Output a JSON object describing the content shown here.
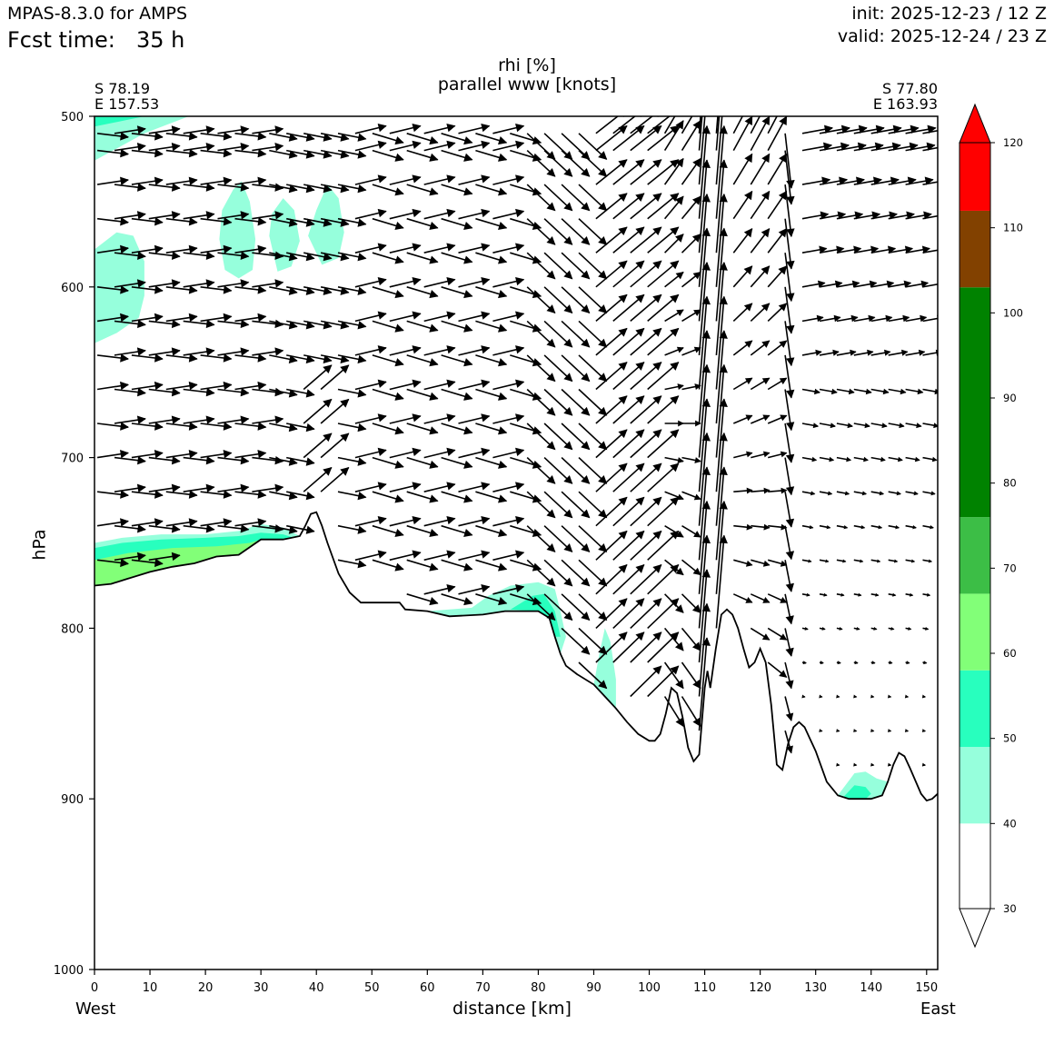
{
  "header": {
    "model": "MPAS-8.3.0 for AMPS",
    "fcst_label": "Fcst time:",
    "fcst_value": "35 h",
    "init": "init: 2025-12-23 / 12 Z",
    "valid": "valid: 2025-12-24 / 23 Z"
  },
  "plot": {
    "title_line1": "rhi [%]",
    "title_line2": "parallel www [knots]",
    "left_lat": "S 78.19",
    "left_lon": "E 157.53",
    "right_lat": "S 77.80",
    "right_lon": "E 163.93",
    "ylabel": "hPa",
    "xlabel": "distance [km]",
    "west": "West",
    "east": "East"
  },
  "chart_data": {
    "type": "heatmap",
    "title": "rhi [%]",
    "subtitle": "parallel www [knots]",
    "xlabel": "distance [km]",
    "ylabel": "hPa",
    "xlim": [
      0,
      152
    ],
    "ylim": [
      1000,
      500
    ],
    "y_inverted": true,
    "x_ticks": [
      0,
      10,
      20,
      30,
      40,
      50,
      60,
      70,
      80,
      90,
      100,
      110,
      120,
      130,
      140,
      150
    ],
    "y_ticks": [
      500,
      600,
      700,
      800,
      900,
      1000
    ],
    "colorbar": {
      "levels": [
        30,
        40,
        50,
        60,
        70,
        80,
        90,
        100,
        110,
        120
      ],
      "tick_labels": [
        "30",
        "40",
        "50",
        "60",
        "70",
        "80",
        "90",
        "100",
        "110",
        "120"
      ],
      "colors": [
        {
          "from": 30,
          "to": 40,
          "color": "#ffffff"
        },
        {
          "from": 40,
          "to": 49,
          "color": "#96ffdc"
        },
        {
          "from": 49,
          "to": 58,
          "color": "#28ffbe"
        },
        {
          "from": 58,
          "to": 67,
          "color": "#82ff78"
        },
        {
          "from": 67,
          "to": 76,
          "color": "#3cbe46"
        },
        {
          "from": 76,
          "to": 103,
          "color": "#008200"
        },
        {
          "from": 103,
          "to": 112,
          "color": "#824100"
        },
        {
          "from": 112,
          "to": 120,
          "color": "#ff0000"
        }
      ],
      "extend": "both"
    },
    "terrain_surface": [
      [
        0,
        775
      ],
      [
        3,
        774
      ],
      [
        6,
        771
      ],
      [
        10,
        767
      ],
      [
        14,
        764
      ],
      [
        18,
        762
      ],
      [
        22,
        758
      ],
      [
        26,
        757
      ],
      [
        30,
        748
      ],
      [
        34,
        748
      ],
      [
        37,
        746
      ],
      [
        38,
        740
      ],
      [
        39,
        733
      ],
      [
        40,
        732
      ],
      [
        41,
        740
      ],
      [
        42,
        750
      ],
      [
        44,
        768
      ],
      [
        46,
        779
      ],
      [
        48,
        785
      ],
      [
        52,
        785
      ],
      [
        55,
        785
      ],
      [
        56,
        789
      ],
      [
        60,
        790
      ],
      [
        64,
        793
      ],
      [
        70,
        792
      ],
      [
        74,
        790
      ],
      [
        80,
        790
      ],
      [
        82,
        794
      ],
      [
        83,
        805
      ],
      [
        84,
        815
      ],
      [
        85,
        822
      ],
      [
        87,
        827
      ],
      [
        90,
        833
      ],
      [
        92,
        840
      ],
      [
        94,
        847
      ],
      [
        96,
        855
      ],
      [
        98,
        862
      ],
      [
        100,
        866
      ],
      [
        101,
        866
      ],
      [
        102,
        862
      ],
      [
        103,
        850
      ],
      [
        104,
        835
      ],
      [
        105,
        838
      ],
      [
        106,
        852
      ],
      [
        107,
        870
      ],
      [
        108,
        878
      ],
      [
        109,
        874
      ],
      [
        110,
        835
      ],
      [
        110.5,
        825
      ],
      [
        111,
        835
      ],
      [
        112,
        812
      ],
      [
        113,
        792
      ],
      [
        114,
        789
      ],
      [
        115,
        792
      ],
      [
        116,
        800
      ],
      [
        117,
        812
      ],
      [
        118,
        823
      ],
      [
        119,
        820
      ],
      [
        120,
        812
      ],
      [
        121,
        820
      ],
      [
        122,
        845
      ],
      [
        123,
        880
      ],
      [
        124,
        883
      ],
      [
        125,
        868
      ],
      [
        126,
        858
      ],
      [
        127,
        855
      ],
      [
        128,
        858
      ],
      [
        130,
        872
      ],
      [
        132,
        890
      ],
      [
        134,
        898
      ],
      [
        136,
        900
      ],
      [
        140,
        900
      ],
      [
        142,
        898
      ],
      [
        143,
        890
      ],
      [
        144,
        880
      ],
      [
        145,
        873
      ],
      [
        146,
        875
      ],
      [
        147,
        882
      ],
      [
        149,
        897
      ],
      [
        150,
        901
      ],
      [
        151,
        900
      ],
      [
        152,
        897
      ]
    ],
    "rhi_regions": [
      {
        "level": 45,
        "points": [
          [
            0,
            500
          ],
          [
            17,
            500
          ],
          [
            9,
            510
          ],
          [
            0,
            526
          ]
        ]
      },
      {
        "level": 53,
        "points": [
          [
            0,
            500
          ],
          [
            9,
            500
          ],
          [
            0,
            506
          ]
        ]
      },
      {
        "level": 45,
        "points": [
          [
            0,
            578
          ],
          [
            4,
            568
          ],
          [
            7,
            570
          ],
          [
            9,
            585
          ],
          [
            9,
            605
          ],
          [
            8,
            618
          ],
          [
            4,
            627
          ],
          [
            0,
            633
          ]
        ]
      },
      {
        "level": 45,
        "points": [
          [
            22.5,
            572
          ],
          [
            23,
            555
          ],
          [
            25,
            543
          ],
          [
            26.5,
            538
          ],
          [
            28,
            550
          ],
          [
            29,
            572
          ],
          [
            28.5,
            590
          ],
          [
            26,
            595
          ],
          [
            23.5,
            590
          ]
        ]
      },
      {
        "level": 45,
        "points": [
          [
            31.5,
            570
          ],
          [
            32,
            557
          ],
          [
            34,
            548
          ],
          [
            36,
            555
          ],
          [
            37,
            573
          ],
          [
            35.5,
            588
          ],
          [
            33,
            591
          ]
        ]
      },
      {
        "level": 45,
        "points": [
          [
            38.5,
            570
          ],
          [
            40,
            555
          ],
          [
            42,
            540
          ],
          [
            44,
            548
          ],
          [
            45,
            568
          ],
          [
            44,
            583
          ],
          [
            41,
            587
          ]
        ]
      },
      {
        "level": 45,
        "points": [
          [
            0,
            750
          ],
          [
            5,
            747
          ],
          [
            12,
            745
          ],
          [
            20,
            745
          ],
          [
            26,
            743
          ],
          [
            30,
            739
          ],
          [
            34,
            741
          ],
          [
            37,
            746
          ],
          [
            34,
            748
          ],
          [
            30,
            748
          ],
          [
            26,
            757
          ],
          [
            22,
            758
          ],
          [
            18,
            762
          ],
          [
            14,
            764
          ],
          [
            10,
            767
          ],
          [
            6,
            771
          ],
          [
            3,
            774
          ],
          [
            0,
            775
          ]
        ]
      },
      {
        "level": 53,
        "points": [
          [
            0,
            753
          ],
          [
            5,
            750
          ],
          [
            12,
            748
          ],
          [
            20,
            747
          ],
          [
            26,
            746
          ],
          [
            30,
            744
          ],
          [
            34,
            745
          ],
          [
            36,
            747
          ],
          [
            34,
            748
          ],
          [
            30,
            748
          ],
          [
            26,
            757
          ],
          [
            22,
            758
          ],
          [
            18,
            762
          ],
          [
            14,
            764
          ],
          [
            10,
            767
          ],
          [
            6,
            771
          ],
          [
            3,
            774
          ],
          [
            0,
            775
          ]
        ]
      },
      {
        "level": 62,
        "points": [
          [
            0,
            760
          ],
          [
            6,
            756
          ],
          [
            14,
            753
          ],
          [
            22,
            752
          ],
          [
            28,
            750
          ],
          [
            30,
            748
          ],
          [
            26,
            757
          ],
          [
            22,
            758
          ],
          [
            18,
            762
          ],
          [
            14,
            764
          ],
          [
            10,
            767
          ],
          [
            6,
            771
          ],
          [
            3,
            774
          ],
          [
            0,
            775
          ]
        ]
      },
      {
        "level": 45,
        "points": [
          [
            60,
            790
          ],
          [
            68,
            788
          ],
          [
            71,
            781
          ],
          [
            75,
            775
          ],
          [
            80,
            773
          ],
          [
            83,
            777
          ],
          [
            84,
            790
          ],
          [
            85,
            805
          ],
          [
            84,
            815
          ],
          [
            83,
            805
          ],
          [
            82,
            794
          ],
          [
            80,
            790
          ],
          [
            74,
            790
          ],
          [
            70,
            792
          ],
          [
            64,
            793
          ]
        ]
      },
      {
        "level": 53,
        "points": [
          [
            75,
            789
          ],
          [
            79,
            781
          ],
          [
            81,
            780
          ],
          [
            83,
            790
          ],
          [
            84,
            805
          ],
          [
            83,
            805
          ],
          [
            82,
            794
          ],
          [
            80,
            790
          ]
        ]
      },
      {
        "level": 45,
        "points": [
          [
            90,
            833
          ],
          [
            91,
            815
          ],
          [
            92,
            800
          ],
          [
            93,
            808
          ],
          [
            94,
            830
          ],
          [
            94,
            847
          ],
          [
            92,
            840
          ]
        ]
      },
      {
        "level": 45,
        "points": [
          [
            134,
            898
          ],
          [
            137,
            885
          ],
          [
            139,
            884
          ],
          [
            141,
            888
          ],
          [
            143,
            890
          ],
          [
            142,
            898
          ],
          [
            140,
            900
          ],
          [
            136,
            900
          ]
        ]
      },
      {
        "level": 53,
        "points": [
          [
            135,
            899
          ],
          [
            137,
            892
          ],
          [
            139,
            893
          ],
          [
            140,
            897
          ],
          [
            139,
            900
          ],
          [
            136,
            900
          ]
        ]
      }
    ],
    "wind_field_note": "parallel wind vectors drawn on a regular km / hPa grid"
  }
}
